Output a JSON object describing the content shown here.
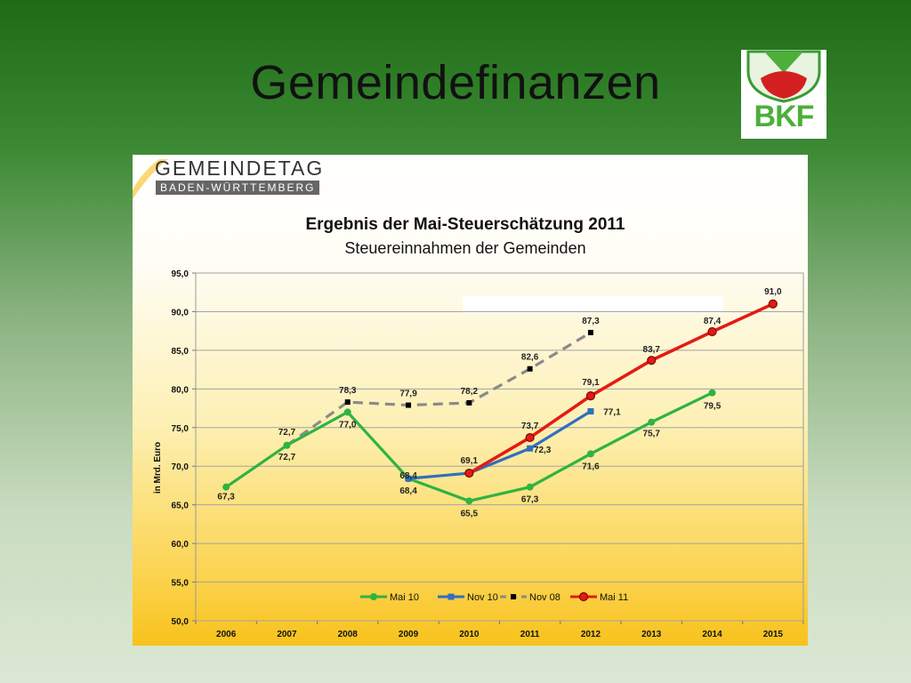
{
  "slide": {
    "title": "Gemeindefinanzen",
    "logo_text": "BKF"
  },
  "header": {
    "org": "GEMEINDETAG",
    "org_sub": "BADEN-WÜRTTEMBERG"
  },
  "colors": {
    "mai10": "#2fb342",
    "nov10": "#2f6fbf",
    "nov08": "#8a8a8a",
    "mai11": "#e31b13"
  },
  "chart_data": {
    "type": "line",
    "title": "Ergebnis der Mai-Steuerschätzung 2011",
    "subtitle": "Steuereinnahmen der Gemeinden",
    "ylabel": "in Mrd. Euro",
    "xlabel": "",
    "ylim": [
      50,
      95
    ],
    "yticks": [
      "50,0",
      "55,0",
      "60,0",
      "65,0",
      "70,0",
      "75,0",
      "80,0",
      "85,0",
      "90,0",
      "95,0"
    ],
    "categories": [
      "2006",
      "2007",
      "2008",
      "2009",
      "2010",
      "2011",
      "2012",
      "2013",
      "2014",
      "2015"
    ],
    "grid": true,
    "legend": "bottom-center",
    "series": [
      {
        "name": "Mai 10",
        "x": [
          2006,
          2007,
          2008,
          2009,
          2010,
          2011,
          2012,
          2013,
          2014
        ],
        "values": [
          67.3,
          72.7,
          77.0,
          68.4,
          65.5,
          67.3,
          71.6,
          75.7,
          79.5
        ],
        "labels": [
          "67,3",
          "72,7",
          "77,0",
          "68,4",
          "65,5",
          "67,3",
          "71,6",
          "75,7",
          "79,5"
        ]
      },
      {
        "name": "Nov 10",
        "x": [
          2009,
          2010,
          2011,
          2012
        ],
        "values": [
          68.4,
          69.1,
          72.3,
          77.1
        ],
        "labels": [
          "68,4",
          "",
          "72,3",
          "77,1"
        ]
      },
      {
        "name": "Nov 08",
        "x": [
          2007,
          2008,
          2009,
          2010,
          2011,
          2012
        ],
        "values": [
          72.7,
          78.3,
          77.9,
          78.2,
          82.6,
          87.3
        ],
        "labels": [
          "72,7",
          "78,3",
          "77,9",
          "78,2",
          "82,6",
          "87,3"
        ]
      },
      {
        "name": "Mai 11",
        "x": [
          2010,
          2011,
          2012,
          2013,
          2014,
          2015
        ],
        "values": [
          69.1,
          73.7,
          79.1,
          83.7,
          87.4,
          91.0
        ],
        "labels": [
          "69,1",
          "73,7",
          "79,1",
          "83,7",
          "87,4",
          "91,0"
        ]
      }
    ]
  }
}
